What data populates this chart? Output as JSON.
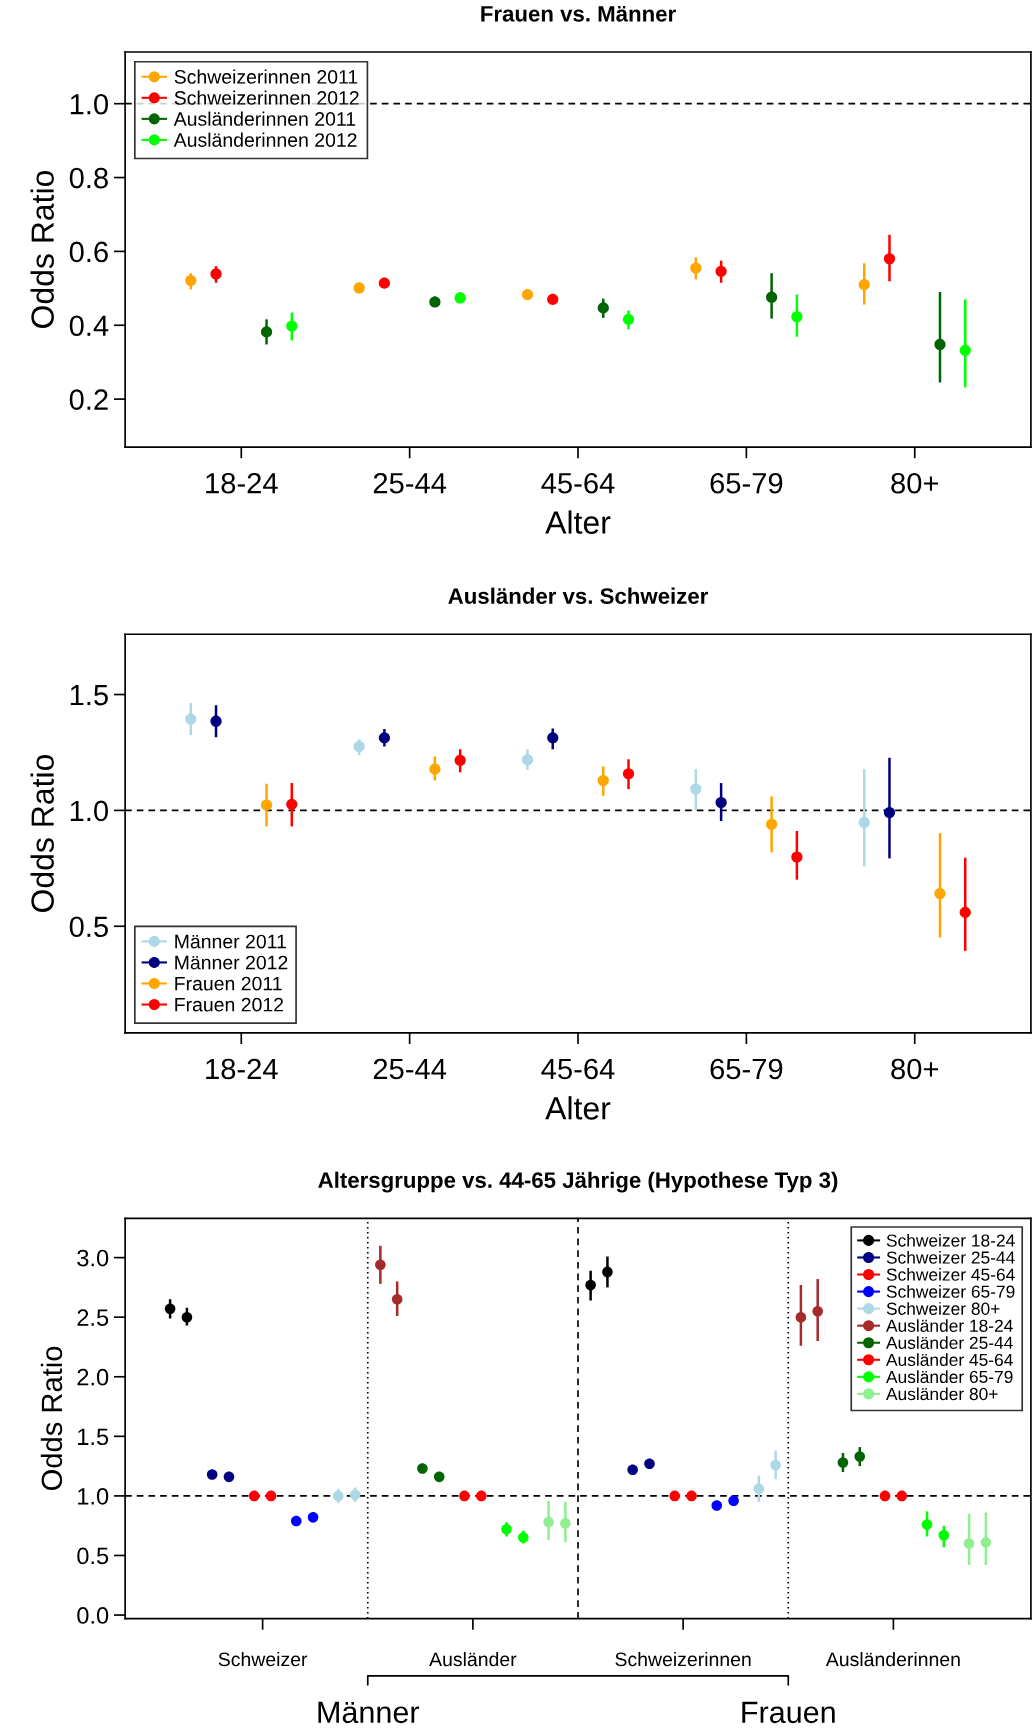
{
  "chart_data": [
    {
      "type": "scatter",
      "title": "Frauen vs. Männer",
      "xlabel": "Alter",
      "ylabel": "Odds Ratio",
      "marker": "circle",
      "legend": "top left",
      "grid": false,
      "categories": [
        "18-24",
        "25-44",
        "45-64",
        "65-79",
        "80+"
      ],
      "ylim": [
        0.07,
        1.14
      ],
      "yticks": [
        {
          "value": 0.2,
          "label": "0.2"
        },
        {
          "value": 0.4,
          "label": "0.4"
        },
        {
          "value": 0.6,
          "label": "0.6"
        },
        {
          "value": 0.8,
          "label": "0.8"
        },
        {
          "value": 1,
          "label": "1.0"
        }
      ],
      "ref_lines": [
        {
          "axis": "y",
          "value": 1,
          "line_style": "dashed",
          "color": "#000000"
        }
      ],
      "series": [
        {
          "name": "Schweizerinnen 2011",
          "color": "#ffa500",
          "values": [
            0.521,
            0.501,
            0.483,
            0.555,
            0.51
          ],
          "errors": [
            [
              0.497,
              0.541
            ],
            [
              0.49,
              0.51
            ],
            [
              0.475,
              0.49
            ],
            [
              0.524,
              0.584
            ],
            [
              0.456,
              0.568
            ]
          ]
        },
        {
          "name": "Schweizerinnen 2012",
          "color": "#ff0000",
          "values": [
            0.539,
            0.514,
            0.47,
            0.546,
            0.58
          ],
          "errors": [
            [
              0.515,
              0.56
            ],
            [
              0.504,
              0.525
            ],
            [
              0.463,
              0.478
            ],
            [
              0.515,
              0.575
            ],
            [
              0.519,
              0.645
            ]
          ]
        },
        {
          "name": "Ausländerinnen 2011",
          "color": "#006400",
          "values": [
            0.382,
            0.463,
            0.447,
            0.476,
            0.348
          ],
          "errors": [
            [
              0.348,
              0.416
            ],
            [
              0.45,
              0.478
            ],
            [
              0.42,
              0.472
            ],
            [
              0.418,
              0.541
            ],
            [
              0.245,
              0.49
            ]
          ]
        },
        {
          "name": "Ausländerinnen 2012",
          "color": "#00ff00",
          "values": [
            0.398,
            0.474,
            0.416,
            0.423,
            0.332
          ],
          "errors": [
            [
              0.359,
              0.434
            ],
            [
              0.46,
              0.49
            ],
            [
              0.389,
              0.44
            ],
            [
              0.369,
              0.483
            ],
            [
              0.232,
              0.47
            ]
          ]
        }
      ]
    },
    {
      "type": "scatter",
      "title": "Ausländer vs. Schweizer",
      "xlabel": "Alter",
      "ylabel": "Odds Ratio",
      "marker": "circle",
      "legend": "bottom left",
      "grid": false,
      "categories": [
        "18-24",
        "25-44",
        "45-64",
        "65-79",
        "80+"
      ],
      "ylim": [
        0.04,
        1.76
      ],
      "yticks": [
        {
          "value": 0.5,
          "label": "0.5"
        },
        {
          "value": 1,
          "label": "1.0"
        },
        {
          "value": 1.5,
          "label": "1.5"
        }
      ],
      "ref_lines": [
        {
          "axis": "y",
          "value": 1,
          "line_style": "dashed",
          "color": "#000000"
        }
      ],
      "series": [
        {
          "name": "Männer 2011",
          "color": "#add8e6",
          "values": [
            1.394,
            1.276,
            1.218,
            1.092,
            0.948
          ],
          "errors": [
            [
              1.325,
              1.463
            ],
            [
              1.239,
              1.307
            ],
            [
              1.175,
              1.264
            ],
            [
              1.003,
              1.178
            ],
            [
              0.759,
              1.178
            ]
          ]
        },
        {
          "name": "Männer 2012",
          "color": "#000080",
          "values": [
            1.385,
            1.313,
            1.313,
            1.034,
            0.991
          ],
          "errors": [
            [
              1.316,
              1.454
            ],
            [
              1.276,
              1.351
            ],
            [
              1.264,
              1.353
            ],
            [
              0.954,
              1.118
            ],
            [
              0.793,
              1.227
            ]
          ]
        },
        {
          "name": "Frauen 2011",
          "color": "#ffa500",
          "values": [
            1.023,
            1.178,
            1.129,
            0.94,
            0.641
          ],
          "errors": [
            [
              0.931,
              1.115
            ],
            [
              1.129,
              1.233
            ],
            [
              1.063,
              1.19
            ],
            [
              0.819,
              1.06
            ],
            [
              0.451,
              0.902
            ]
          ]
        },
        {
          "name": "Frauen 2012",
          "color": "#ff0000",
          "values": [
            1.026,
            1.216,
            1.158,
            0.799,
            0.56
          ],
          "errors": [
            [
              0.931,
              1.118
            ],
            [
              1.164,
              1.264
            ],
            [
              1.092,
              1.221
            ],
            [
              0.701,
              0.911
            ],
            [
              0.394,
              0.796
            ]
          ]
        }
      ]
    },
    {
      "type": "scatter",
      "title": "Altersgruppe vs. 44-65 Jährige (Hypothese Typ 3)",
      "ylabel": "Odds Ratio",
      "marker": "circle",
      "legend": "top right",
      "grid": false,
      "categories": [
        "Schweizer",
        "Ausländer",
        "Schweizerinnen",
        "Ausländerinnen"
      ],
      "ylim": [
        -0.03,
        3.33
      ],
      "yticks": [
        {
          "value": 0,
          "label": "0.0"
        },
        {
          "value": 0.5,
          "label": "0.5"
        },
        {
          "value": 1,
          "label": "1.0"
        },
        {
          "value": 1.5,
          "label": "1.5"
        },
        {
          "value": 2,
          "label": "2.0"
        },
        {
          "value": 2.5,
          "label": "2.5"
        },
        {
          "value": 3,
          "label": "3.0"
        }
      ],
      "ref_lines": [
        {
          "axis": "y",
          "value": 1,
          "line_style": "dashed",
          "color": "#000000"
        }
      ],
      "annotations": [
        "Männer",
        "Frauen"
      ],
      "series": [
        {
          "name": "Schweizer 18-24",
          "color": "#000000",
          "values": [
            2.57,
            null,
            2.77,
            null
          ],
          "errors": [
            [
              2.49,
              2.65
            ],
            null,
            [
              2.64,
              2.89
            ],
            null
          ]
        },
        {
          "color": "#000000",
          "values": [
            2.5,
            null,
            2.88,
            null
          ],
          "errors": [
            [
              2.43,
              2.58
            ],
            null,
            [
              2.75,
              3.01
            ],
            null
          ]
        },
        {
          "name": "Schweizer 25-44",
          "color": "#000080",
          "values": [
            1.18,
            null,
            1.22,
            null
          ],
          "errors": [
            [
              1.16,
              1.19
            ],
            null,
            [
              1.2,
              1.25
            ],
            null
          ]
        },
        {
          "color": "#000080",
          "values": [
            1.16,
            null,
            1.27,
            null
          ],
          "errors": [
            [
              1.14,
              1.17
            ],
            null,
            [
              1.25,
              1.29
            ],
            null
          ]
        },
        {
          "name": "Schweizer 45-64",
          "color": "#ff0000",
          "values": [
            1,
            null,
            1,
            null
          ]
        },
        {
          "color": "#ff0000",
          "values": [
            1,
            null,
            1,
            null
          ]
        },
        {
          "name": "Schweizer 65-79",
          "color": "#0000ff",
          "values": [
            0.79,
            null,
            0.92,
            null
          ],
          "errors": [
            [
              0.77,
              0.81
            ],
            null,
            [
              0.89,
              0.95
            ],
            null
          ]
        },
        {
          "color": "#0000ff",
          "values": [
            0.82,
            null,
            0.96,
            null
          ],
          "errors": [
            [
              0.8,
              0.84
            ],
            null,
            [
              0.93,
              0.99
            ],
            null
          ]
        },
        {
          "name": "Schweizer 80+",
          "color": "#add8e6",
          "values": [
            1,
            null,
            1.06,
            null
          ],
          "errors": [
            [
              0.94,
              1.06
            ],
            null,
            [
              0.95,
              1.17
            ],
            null
          ]
        },
        {
          "color": "#add8e6",
          "values": [
            1.01,
            null,
            1.26,
            null
          ],
          "errors": [
            [
              0.95,
              1.07
            ],
            null,
            [
              1.14,
              1.38
            ],
            null
          ]
        },
        {
          "name": "Ausländer 18-24",
          "color": "#a52a2a",
          "values": [
            null,
            2.94,
            null,
            2.5
          ],
          "errors": [
            null,
            [
              2.78,
              3.1
            ],
            null,
            [
              2.26,
              2.77
            ]
          ]
        },
        {
          "color": "#a52a2a",
          "values": [
            null,
            2.65,
            null,
            2.55
          ],
          "errors": [
            null,
            [
              2.51,
              2.8
            ],
            null,
            [
              2.3,
              2.82
            ]
          ]
        },
        {
          "name": "Ausländer 25-44",
          "color": "#006400",
          "values": [
            null,
            1.23,
            null,
            1.28
          ],
          "errors": [
            null,
            [
              1.21,
              1.25
            ],
            null,
            [
              1.2,
              1.36
            ]
          ]
        },
        {
          "color": "#006400",
          "values": [
            null,
            1.16,
            null,
            1.33
          ],
          "errors": [
            null,
            [
              1.14,
              1.18
            ],
            null,
            [
              1.25,
              1.41
            ]
          ]
        },
        {
          "name": "Ausländer 45-64",
          "color": "#ff0000",
          "values": [
            null,
            1,
            null,
            1
          ]
        },
        {
          "color": "#ff0000",
          "values": [
            null,
            1,
            null,
            1
          ]
        },
        {
          "name": "Ausländer 65-79",
          "color": "#00ff00",
          "values": [
            null,
            0.72,
            null,
            0.76
          ],
          "errors": [
            null,
            [
              0.66,
              0.78
            ],
            null,
            [
              0.66,
              0.87
            ]
          ]
        },
        {
          "color": "#00ff00",
          "values": [
            null,
            0.65,
            null,
            0.67
          ],
          "errors": [
            null,
            [
              0.6,
              0.71
            ],
            null,
            [
              0.57,
              0.75
            ]
          ]
        },
        {
          "name": "Ausländer 80+",
          "color": "#90ee90",
          "values": [
            null,
            0.78,
            null,
            0.6
          ],
          "errors": [
            null,
            [
              0.63,
              0.96
            ],
            null,
            [
              0.42,
              0.85
            ]
          ]
        },
        {
          "color": "#90ee90",
          "values": [
            null,
            0.77,
            null,
            0.61
          ],
          "errors": [
            null,
            [
              0.61,
              0.95
            ],
            null,
            [
              0.42,
              0.86
            ]
          ]
        }
      ]
    }
  ]
}
